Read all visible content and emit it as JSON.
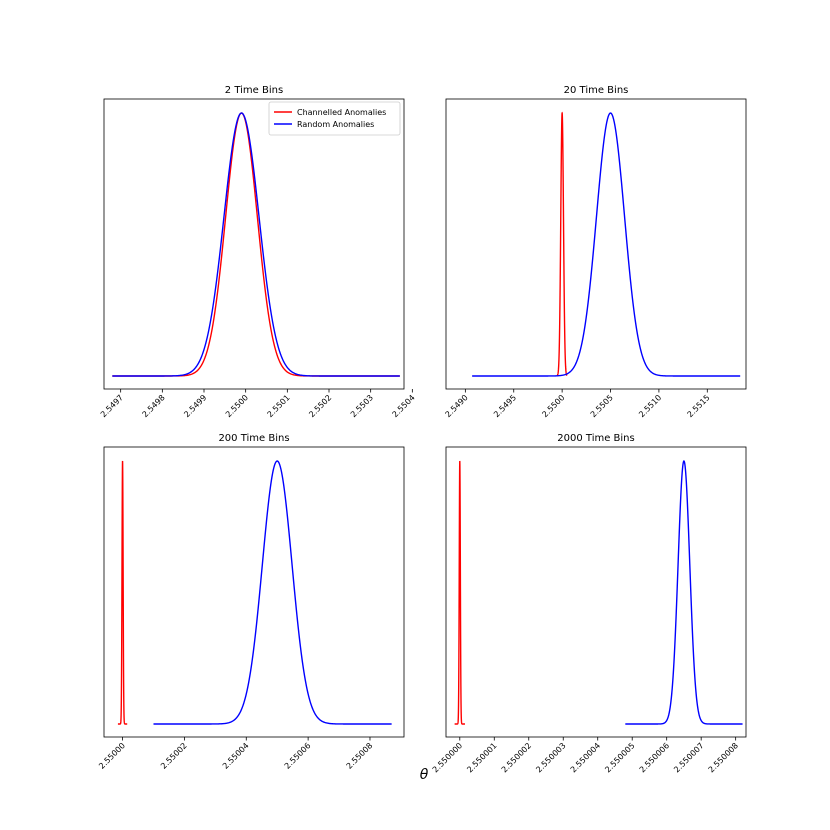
{
  "figure": {
    "xlabel": "θ"
  },
  "legend": {
    "placement": "top-right",
    "entries": [
      {
        "name": "Channelled Anomalies",
        "color": "#ff0000"
      },
      {
        "name": "Random Anomalies",
        "color": "#0000ff"
      }
    ]
  },
  "chart_data": [
    {
      "type": "line",
      "title": "2 Time Bins",
      "xlim": [
        2.54966,
        2.55038
      ],
      "xticks": [
        2.5497,
        2.5498,
        2.5499,
        2.55,
        2.5501,
        2.5502,
        2.5503,
        2.5504
      ],
      "xtick_labels": [
        "2.5497",
        "2.5498",
        "2.5499",
        "2.5500",
        "2.5501",
        "2.5502",
        "2.5503",
        "2.5504"
      ],
      "yticks_visible": false,
      "legend": true,
      "series": [
        {
          "name": "Channelled Anomalies",
          "color": "#ff0000",
          "shape": "gaussian",
          "peak": 2.54999,
          "sigma": 3.8e-05,
          "x_range": [
            2.54968,
            2.55037
          ]
        },
        {
          "name": "Random Anomalies",
          "color": "#0000ff",
          "shape": "gaussian",
          "peak": 2.54999,
          "sigma": 4.2e-05,
          "x_range": [
            2.54968,
            2.55037
          ]
        }
      ]
    },
    {
      "type": "line",
      "title": "20 Time Bins",
      "xlim": [
        2.5488,
        2.5519
      ],
      "xticks": [
        2.549,
        2.5495,
        2.55,
        2.5505,
        2.551,
        2.5515
      ],
      "xtick_labels": [
        "2.5490",
        "2.5495",
        "2.5500",
        "2.5505",
        "2.5510",
        "2.5515"
      ],
      "yticks_visible": false,
      "legend": false,
      "series": [
        {
          "name": "Channelled Anomalies",
          "color": "#ff0000",
          "shape": "gaussian",
          "peak": 2.55,
          "sigma": 1.4e-05,
          "x_range": [
            2.54995,
            2.55005
          ]
        },
        {
          "name": "Random Anomalies",
          "color": "#0000ff",
          "shape": "gaussian",
          "peak": 2.5505,
          "sigma": 0.000145,
          "x_range": [
            2.54907,
            2.55184
          ]
        }
      ]
    },
    {
      "type": "line",
      "title": "200 Time Bins",
      "xlim": [
        2.549994,
        2.550091
      ],
      "xticks": [
        2.55,
        2.55002,
        2.55004,
        2.55006,
        2.55008
      ],
      "xtick_labels": [
        "2.55000",
        "2.55002",
        "2.55004",
        "2.55006",
        "2.55008"
      ],
      "yticks_visible": false,
      "legend": false,
      "series": [
        {
          "name": "Channelled Anomalies",
          "color": "#ff0000",
          "shape": "gaussian",
          "peak": 2.55,
          "sigma": 1.8e-07,
          "x_range": [
            2.5499985,
            2.5500015
          ]
        },
        {
          "name": "Random Anomalies",
          "color": "#0000ff",
          "shape": "gaussian",
          "peak": 2.55005,
          "sigma": 4.8e-06,
          "x_range": [
            2.55001,
            2.550087
          ]
        }
      ]
    },
    {
      "type": "line",
      "title": "2000 Time Bins",
      "xlim": [
        2.5499996,
        2.5500083
      ],
      "xticks": [
        2.55,
        2.550001,
        2.550002,
        2.550003,
        2.550004,
        2.550005,
        2.550006,
        2.550007,
        2.550008
      ],
      "xtick_labels": [
        "2.550000",
        "2.550001",
        "2.550002",
        "2.550003",
        "2.550004",
        "2.550005",
        "2.550006",
        "2.550007",
        "2.550008"
      ],
      "yticks_visible": false,
      "legend": false,
      "series": [
        {
          "name": "Channelled Anomalies",
          "color": "#ff0000",
          "shape": "gaussian",
          "peak": 2.55,
          "sigma": 1.6e-08,
          "x_range": [
            2.54999985,
            2.55000015
          ]
        },
        {
          "name": "Random Anomalies",
          "color": "#0000ff",
          "shape": "gaussian",
          "peak": 2.5500065,
          "sigma": 1.7e-07,
          "x_range": [
            2.5500048,
            2.5500082
          ]
        }
      ]
    }
  ]
}
